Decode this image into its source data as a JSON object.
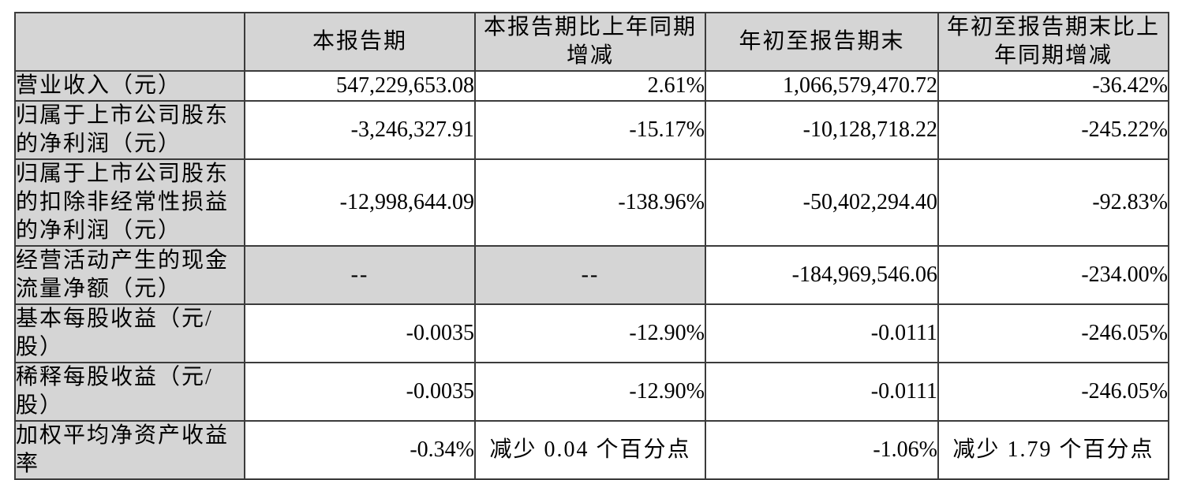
{
  "colors": {
    "cell_shade": "#d5d5d5",
    "border": "#3b3b3b",
    "text": "#000000",
    "background": "#ffffff"
  },
  "table": {
    "columns": [
      "",
      "本报告期",
      "本报告期比上年同期增减",
      "年初至报告期末",
      "年初至报告期末比上年同期增减"
    ],
    "rows": [
      {
        "label": "营业收入（元）",
        "values": [
          "547,229,653.08",
          "2.61%",
          "1,066,579,470.72",
          "-36.42%"
        ]
      },
      {
        "label": "归属于上市公司股东的净利润（元）",
        "values": [
          "-3,246,327.91",
          "-15.17%",
          "-10,128,718.22",
          "-245.22%"
        ]
      },
      {
        "label": "归属于上市公司股东的扣除非经常性损益的净利润（元）",
        "values": [
          "-12,998,644.09",
          "-138.96%",
          "-50,402,294.40",
          "-92.83%"
        ]
      },
      {
        "label": "经营活动产生的现金流量净额（元）",
        "values": [
          "--",
          "--",
          "-184,969,546.06",
          "-234.00%"
        ]
      },
      {
        "label": "基本每股收益（元/股）",
        "values": [
          "-0.0035",
          "-12.90%",
          "-0.0111",
          "-246.05%"
        ]
      },
      {
        "label": "稀释每股收益（元/股）",
        "values": [
          "-0.0035",
          "-12.90%",
          "-0.0111",
          "-246.05%"
        ]
      },
      {
        "label": "加权平均净资产收益率",
        "values": [
          "-0.34%",
          "减少 0.04 个百分点",
          "-1.06%",
          "减少 1.79 个百分点"
        ]
      }
    ]
  }
}
